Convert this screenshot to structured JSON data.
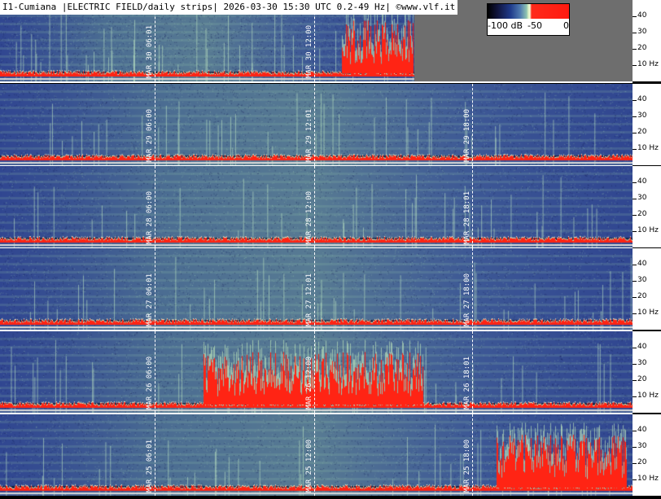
{
  "header": {
    "title": "I1-Cumiana |ELECTRIC FIELD/daily strips| 2026-03-30 15:30 UTC 0.2-49 Hz| ©www.vlf.it"
  },
  "legend": {
    "labels": [
      "-100 dB",
      "-50",
      "0"
    ],
    "colors": [
      "#000000",
      "#1f3a8a",
      "#8fc4b0",
      "#f2fbd8",
      "#ff1a10"
    ]
  },
  "axis": {
    "ticks": [
      "40",
      "30",
      "20",
      "10 Hz"
    ]
  },
  "strips": [
    {
      "id": "mar30",
      "times": [
        "MAR 30  06:01",
        "MAR 30  12:00"
      ],
      "partial": 0.655
    },
    {
      "id": "mar29",
      "times": [
        "MAR 29  06:00",
        "MAR 29  12:01",
        "MAR 29  18:00"
      ]
    },
    {
      "id": "mar28",
      "times": [
        "MAR 28  06:00",
        "MAR 28  12:00",
        "MAR 28  18:01"
      ]
    },
    {
      "id": "mar27",
      "times": [
        "MAR 27  06:01",
        "MAR 27  12:01",
        "MAR 27  18:00"
      ]
    },
    {
      "id": "mar26",
      "times": [
        "MAR 26  06:00",
        "MAR 26  12:00",
        "MAR 26  18:01"
      ]
    },
    {
      "id": "mar25",
      "times": [
        "MAR 25  06:01",
        "MAR 25  12:00",
        "MAR 25  18:00"
      ]
    }
  ]
}
